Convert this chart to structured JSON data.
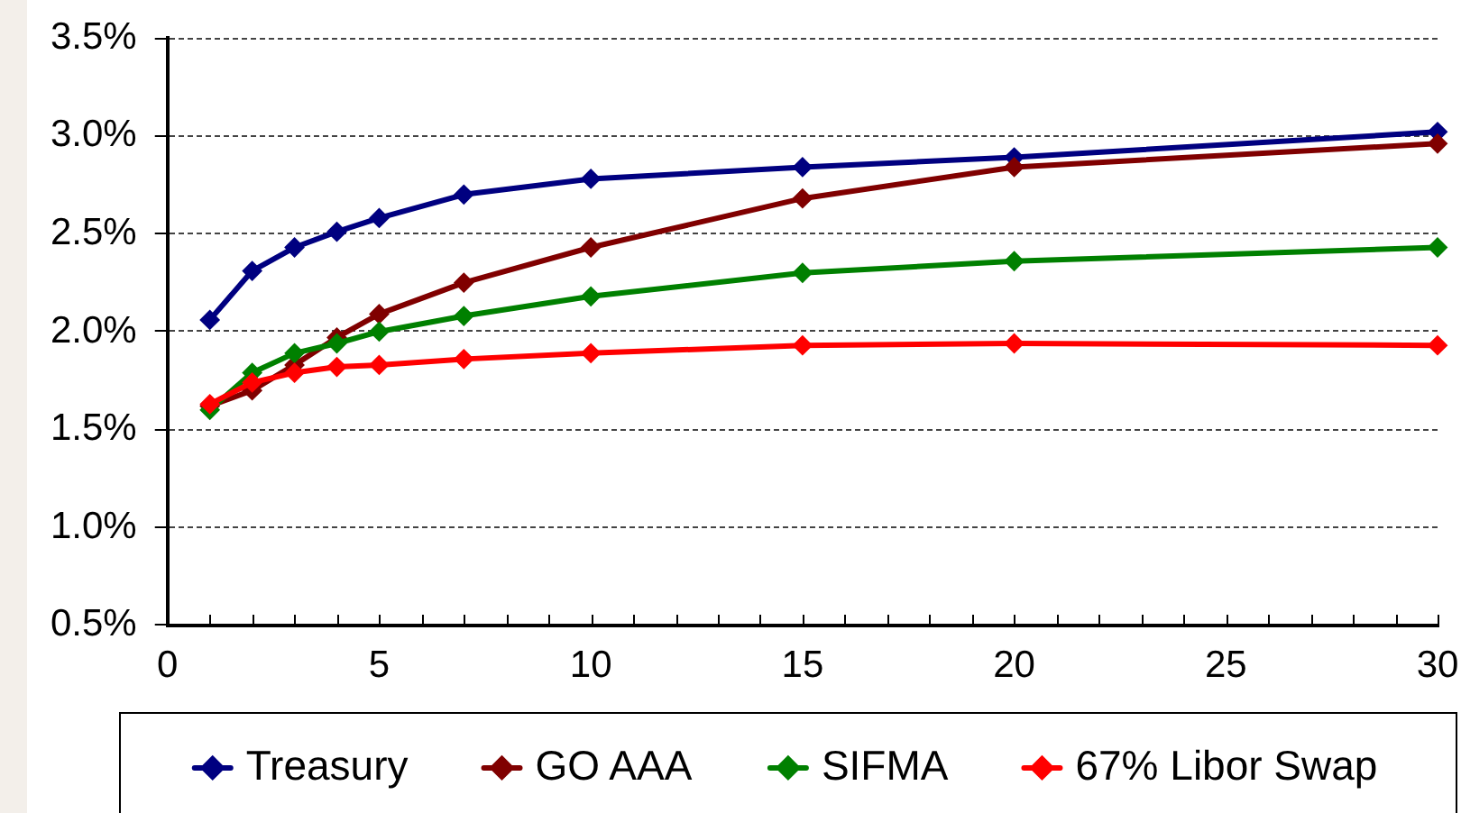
{
  "chart_data": {
    "type": "line",
    "x": [
      1,
      2,
      3,
      4,
      5,
      7,
      10,
      15,
      20,
      30
    ],
    "series": [
      {
        "name": "Treasury",
        "color": "#000080",
        "values": [
          2.06,
          2.31,
          2.43,
          2.51,
          2.58,
          2.7,
          2.78,
          2.84,
          2.89,
          3.02
        ]
      },
      {
        "name": "GO AAA",
        "color": "#800000",
        "values": [
          1.62,
          1.7,
          1.83,
          1.97,
          2.09,
          2.25,
          2.43,
          2.68,
          2.84,
          2.96
        ]
      },
      {
        "name": "SIFMA",
        "color": "#008000",
        "values": [
          1.6,
          1.79,
          1.89,
          1.94,
          2.0,
          2.08,
          2.18,
          2.3,
          2.36,
          2.43
        ]
      },
      {
        "name": "67% Libor Swap",
        "color": "#ff0000",
        "values": [
          1.63,
          1.74,
          1.79,
          1.82,
          1.83,
          1.86,
          1.89,
          1.93,
          1.94,
          1.93
        ]
      }
    ],
    "xlim": [
      0,
      30
    ],
    "xticks": [
      0,
      {
        "value": 1,
        "label": null
      },
      {
        "value": 2,
        "label": null
      },
      {
        "value": 3,
        "label": null
      },
      {
        "value": 4,
        "label": null
      },
      5,
      {
        "value": 6,
        "label": null
      },
      {
        "value": 7,
        "label": null
      },
      {
        "value": 8,
        "label": null
      },
      {
        "value": 9,
        "label": null
      },
      10,
      {
        "value": 11,
        "label": null
      },
      {
        "value": 12,
        "label": null
      },
      {
        "value": 13,
        "label": null
      },
      {
        "value": 14,
        "label": null
      },
      15,
      {
        "value": 16,
        "label": null
      },
      {
        "value": 17,
        "label": null
      },
      {
        "value": 18,
        "label": null
      },
      {
        "value": 19,
        "label": null
      },
      20,
      {
        "value": 21,
        "label": null
      },
      {
        "value": 22,
        "label": null
      },
      {
        "value": 23,
        "label": null
      },
      {
        "value": 24,
        "label": null
      },
      25,
      {
        "value": 26,
        "label": null
      },
      {
        "value": 27,
        "label": null
      },
      {
        "value": 28,
        "label": null
      },
      {
        "value": 29,
        "label": null
      },
      30
    ],
    "ylim": [
      0.5,
      3.5
    ],
    "yticks": [
      {
        "value": 0.5,
        "label": "0.5%"
      },
      {
        "value": 1.0,
        "label": "1.0%"
      },
      {
        "value": 1.5,
        "label": "1.5%"
      },
      {
        "value": 2.0,
        "label": "2.0%"
      },
      {
        "value": 2.5,
        "label": "2.5%"
      },
      {
        "value": 3.0,
        "label": "3.0%"
      },
      {
        "value": 3.5,
        "label": "3.5%"
      }
    ],
    "grid": "y",
    "legend": "bottom",
    "marker": "diamond",
    "line_style": "solid"
  }
}
